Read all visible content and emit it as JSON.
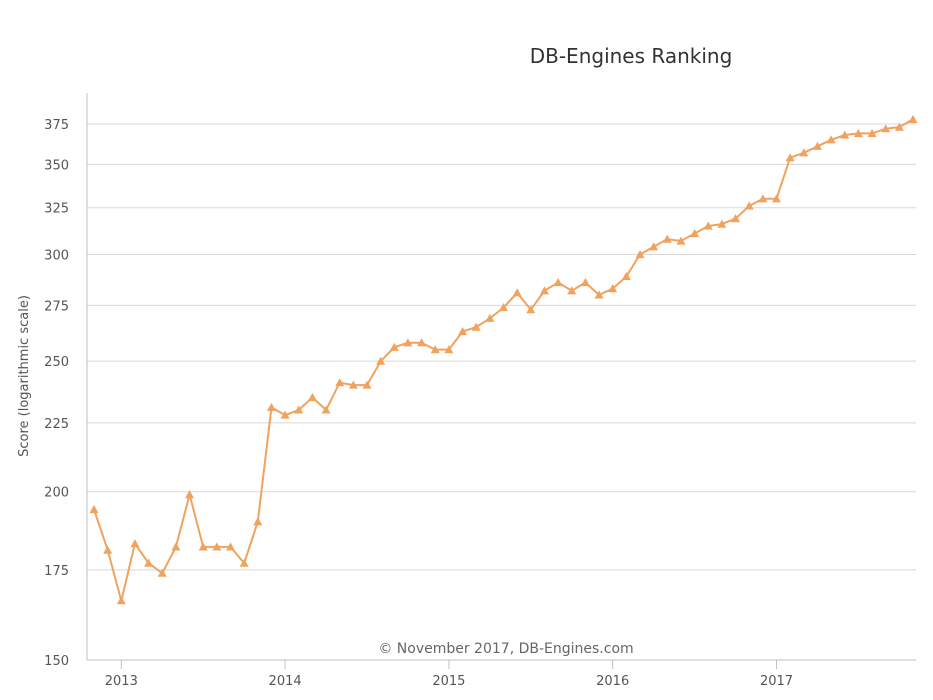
{
  "chart_data": {
    "type": "line",
    "title": "DB-Engines Ranking",
    "xlabel": "",
    "ylabel": "Score (logarithmic scale)",
    "y_scale": "log",
    "ylim": [
      150,
      385
    ],
    "y_ticks": [
      150,
      175,
      200,
      225,
      250,
      275,
      300,
      325,
      350,
      375
    ],
    "x_ticks": [
      "2013",
      "2014",
      "2015",
      "2016",
      "2017"
    ],
    "xlim": [
      "2012-11",
      "2017-11"
    ],
    "grid": true,
    "marker": "triangle",
    "color": "#f0a35e",
    "credit": "© November 2017, DB-Engines.com",
    "series": [
      {
        "x": [
          "2012-11",
          "2012-12",
          "2013-01",
          "2013-02",
          "2013-03",
          "2013-04",
          "2013-05",
          "2013-06",
          "2013-07",
          "2013-08",
          "2013-09",
          "2013-10",
          "2013-11",
          "2013-12",
          "2014-01",
          "2014-02",
          "2014-03",
          "2014-04",
          "2014-05",
          "2014-06",
          "2014-07",
          "2014-08",
          "2014-09",
          "2014-10",
          "2014-11",
          "2014-12",
          "2015-01",
          "2015-02",
          "2015-03",
          "2015-04",
          "2015-05",
          "2015-06",
          "2015-07",
          "2015-08",
          "2015-09",
          "2015-10",
          "2015-11",
          "2015-12",
          "2016-01",
          "2016-02",
          "2016-03",
          "2016-04",
          "2016-05",
          "2016-06",
          "2016-07",
          "2016-08",
          "2016-09",
          "2016-10",
          "2016-11",
          "2016-12",
          "2017-01",
          "2017-02",
          "2017-03",
          "2017-04",
          "2017-05",
          "2017-06",
          "2017-07",
          "2017-08",
          "2017-09",
          "2017-10",
          "2017-11"
        ],
        "values": [
          194,
          181,
          166,
          183,
          177,
          174,
          182,
          199,
          182,
          182,
          182,
          177,
          190,
          231,
          228,
          230,
          235,
          230,
          241,
          240,
          240,
          250,
          256,
          258,
          258,
          255,
          255,
          263,
          265,
          269,
          274,
          281,
          273,
          282,
          286,
          282,
          286,
          280,
          283,
          289,
          300,
          304,
          308,
          307,
          311,
          315,
          316,
          319,
          326,
          330,
          330,
          354,
          357,
          361,
          365,
          368,
          369,
          369,
          372,
          373,
          378
        ]
      }
    ]
  }
}
